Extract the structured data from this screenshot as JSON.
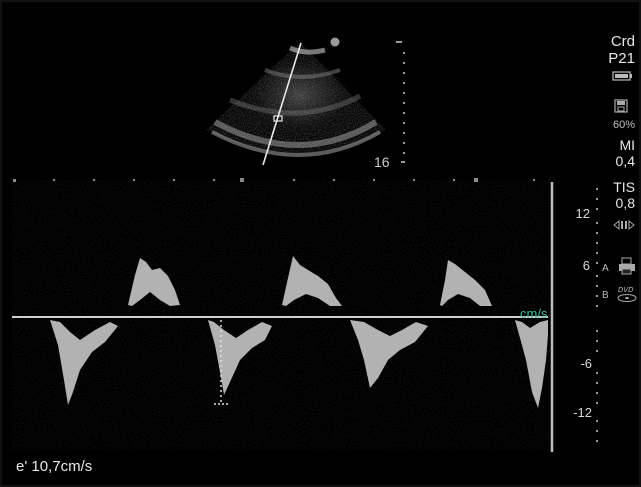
{
  "sidebar": {
    "mode": "Crd",
    "probe": "P21",
    "power": "60%",
    "mi_label": "MI",
    "mi_value": "0,4",
    "tis_label": "TIS",
    "tis_value": "0,8"
  },
  "bmode": {
    "depth_label": "16"
  },
  "doppler": {
    "unit": "cm/s",
    "ticks": [
      "12",
      "6",
      "-6",
      "-12"
    ],
    "marker_a": "A",
    "marker_b": "B"
  },
  "measurement": {
    "text": "e' 10,7cm/s"
  },
  "icons": {
    "battery": "battery-icon",
    "save": "save-icon",
    "cine": "cine-icon",
    "printer": "printer-icon",
    "dvd": "dvd-icon"
  },
  "colors": {
    "background": "#000000",
    "unit_label": "#3fb99a",
    "text": "#e8e8e8"
  }
}
